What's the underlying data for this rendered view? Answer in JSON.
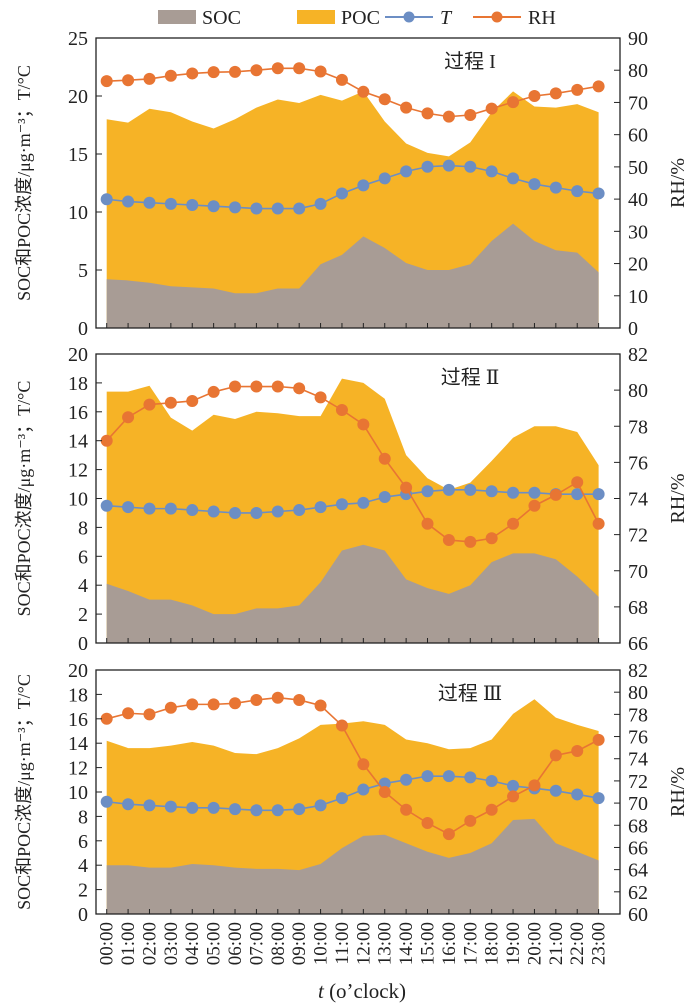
{
  "legend": [
    {
      "label": "SOC",
      "kind": "area",
      "color": "#a89c95"
    },
    {
      "label": "POC",
      "kind": "area",
      "color": "#f6b326"
    },
    {
      "label": "T",
      "kind": "line",
      "color": "#6c8ec4",
      "italic": true
    },
    {
      "label": "RH",
      "kind": "line",
      "color": "#e87533"
    }
  ],
  "x_title_italic": "t",
  "x_title_rest": " (o’clock)",
  "left_axis_title": "SOC和POC浓度/μg·m⁻³；T/°C",
  "right_axis_title": "RH/%",
  "chart_data": [
    {
      "type": "area",
      "panel_label": "过程 I",
      "categories": [
        "00:00",
        "01:00",
        "02:00",
        "03:00",
        "04:00",
        "05:00",
        "06:00",
        "07:00",
        "08:00",
        "09:00",
        "10:00",
        "11:00",
        "12:00",
        "13:00",
        "14:00",
        "15:00",
        "16:00",
        "17:00",
        "18:00",
        "19:00",
        "20:00",
        "21:00",
        "22:00",
        "23:00"
      ],
      "ylim": [
        0,
        25
      ],
      "yticks": [
        0,
        5,
        10,
        15,
        20,
        25
      ],
      "y2lim": [
        0,
        90
      ],
      "y2ticks": [
        0,
        10,
        20,
        30,
        40,
        50,
        60,
        70,
        80,
        90
      ],
      "series": [
        {
          "name": "SOC",
          "axis": "left",
          "values": [
            4.2,
            4.1,
            3.9,
            3.6,
            3.5,
            3.4,
            3.0,
            3.0,
            3.4,
            3.4,
            5.5,
            6.3,
            7.9,
            6.9,
            5.6,
            5.0,
            5.0,
            5.5,
            7.5,
            9.0,
            7.5,
            6.7,
            6.5,
            4.8
          ]
        },
        {
          "name": "SOC+POC",
          "axis": "left",
          "values": [
            18.0,
            17.7,
            18.9,
            18.6,
            17.8,
            17.2,
            18.0,
            19.0,
            19.7,
            19.4,
            20.1,
            19.6,
            20.4,
            17.8,
            15.9,
            15.1,
            14.8,
            16.0,
            18.6,
            20.4,
            19.1,
            19.0,
            19.3,
            18.6
          ]
        },
        {
          "name": "T",
          "axis": "left",
          "values": [
            11.1,
            10.9,
            10.8,
            10.7,
            10.6,
            10.5,
            10.4,
            10.3,
            10.3,
            10.3,
            10.7,
            11.6,
            12.3,
            12.9,
            13.5,
            13.9,
            14.0,
            13.9,
            13.5,
            12.9,
            12.4,
            12.1,
            11.8,
            11.6
          ]
        },
        {
          "name": "RH",
          "axis": "right",
          "values": [
            76.6,
            76.9,
            77.3,
            78.3,
            79.0,
            79.4,
            79.5,
            80.0,
            80.6,
            80.6,
            79.6,
            77.0,
            73.3,
            71.0,
            68.4,
            66.6,
            65.6,
            66.1,
            68.1,
            70.1,
            72.0,
            72.8,
            73.9,
            75.0
          ]
        }
      ]
    },
    {
      "type": "area",
      "panel_label": "过程 Ⅱ",
      "categories": [
        "00:00",
        "01:00",
        "02:00",
        "03:00",
        "04:00",
        "05:00",
        "06:00",
        "07:00",
        "08:00",
        "09:00",
        "10:00",
        "11:00",
        "12:00",
        "13:00",
        "14:00",
        "15:00",
        "16:00",
        "17:00",
        "18:00",
        "19:00",
        "20:00",
        "21:00",
        "22:00",
        "23:00"
      ],
      "ylim": [
        0,
        20
      ],
      "yticks": [
        0,
        2,
        4,
        6,
        8,
        10,
        12,
        14,
        16,
        18,
        20
      ],
      "y2lim": [
        66,
        82
      ],
      "y2ticks": [
        66,
        68,
        70,
        72,
        74,
        76,
        78,
        80,
        82
      ],
      "series": [
        {
          "name": "SOC",
          "axis": "left",
          "values": [
            4.1,
            3.6,
            3.0,
            3.0,
            2.6,
            2.0,
            2.0,
            2.4,
            2.4,
            2.6,
            4.2,
            6.4,
            6.8,
            6.4,
            4.4,
            3.8,
            3.4,
            4.0,
            5.6,
            6.2,
            6.2,
            5.8,
            4.6,
            3.2
          ]
        },
        {
          "name": "SOC+POC",
          "axis": "left",
          "values": [
            17.4,
            17.4,
            17.8,
            15.6,
            14.7,
            15.8,
            15.5,
            16.0,
            15.9,
            15.7,
            15.7,
            18.3,
            18.0,
            16.9,
            13.0,
            11.4,
            10.6,
            11.1,
            12.6,
            14.2,
            15.0,
            15.0,
            14.6,
            12.3
          ]
        },
        {
          "name": "T",
          "axis": "left",
          "values": [
            9.5,
            9.4,
            9.3,
            9.3,
            9.2,
            9.1,
            9.0,
            9.0,
            9.1,
            9.2,
            9.4,
            9.6,
            9.7,
            10.1,
            10.3,
            10.5,
            10.6,
            10.6,
            10.5,
            10.4,
            10.4,
            10.3,
            10.3,
            10.3
          ]
        },
        {
          "name": "RH",
          "axis": "right",
          "values": [
            77.2,
            78.5,
            79.2,
            79.3,
            79.4,
            79.9,
            80.2,
            80.2,
            80.2,
            80.1,
            79.6,
            78.9,
            78.1,
            76.2,
            74.6,
            72.6,
            71.7,
            71.6,
            71.8,
            72.6,
            73.6,
            74.2,
            74.9,
            72.6
          ]
        }
      ]
    },
    {
      "type": "area",
      "panel_label": "过程 Ⅲ",
      "categories": [
        "00:00",
        "01:00",
        "02:00",
        "03:00",
        "04:00",
        "05:00",
        "06:00",
        "07:00",
        "08:00",
        "09:00",
        "10:00",
        "11:00",
        "12:00",
        "13:00",
        "14:00",
        "15:00",
        "16:00",
        "17:00",
        "18:00",
        "19:00",
        "20:00",
        "21:00",
        "22:00",
        "23:00"
      ],
      "ylim": [
        0,
        20
      ],
      "yticks": [
        0,
        2,
        4,
        6,
        8,
        10,
        12,
        14,
        16,
        18,
        20
      ],
      "y2lim": [
        60,
        82
      ],
      "y2ticks": [
        60,
        62,
        64,
        66,
        68,
        70,
        72,
        74,
        76,
        78,
        80,
        82
      ],
      "series": [
        {
          "name": "SOC",
          "axis": "left",
          "values": [
            4.0,
            4.0,
            3.8,
            3.8,
            4.1,
            4.0,
            3.8,
            3.7,
            3.7,
            3.6,
            4.1,
            5.4,
            6.4,
            6.5,
            5.8,
            5.1,
            4.6,
            5.0,
            5.8,
            7.7,
            7.8,
            5.8,
            5.1,
            4.4
          ]
        },
        {
          "name": "SOC+POC",
          "axis": "left",
          "values": [
            14.2,
            13.6,
            13.6,
            13.8,
            14.1,
            13.8,
            13.2,
            13.1,
            13.6,
            14.4,
            15.5,
            15.6,
            15.8,
            15.5,
            14.3,
            14.0,
            13.5,
            13.6,
            14.3,
            16.4,
            17.6,
            16.1,
            15.5,
            15.0
          ]
        },
        {
          "name": "T",
          "axis": "left",
          "values": [
            9.2,
            9.0,
            8.9,
            8.8,
            8.7,
            8.7,
            8.6,
            8.5,
            8.5,
            8.6,
            8.9,
            9.5,
            10.2,
            10.7,
            11.0,
            11.3,
            11.3,
            11.2,
            10.9,
            10.5,
            10.3,
            10.1,
            9.8,
            9.5
          ]
        },
        {
          "name": "RH",
          "axis": "right",
          "values": [
            77.6,
            78.1,
            78.0,
            78.6,
            78.9,
            78.9,
            79.0,
            79.3,
            79.5,
            79.3,
            78.8,
            77.0,
            73.5,
            71.0,
            69.4,
            68.2,
            67.2,
            68.4,
            69.4,
            70.6,
            71.6,
            74.3,
            74.7,
            75.7
          ]
        }
      ]
    }
  ]
}
